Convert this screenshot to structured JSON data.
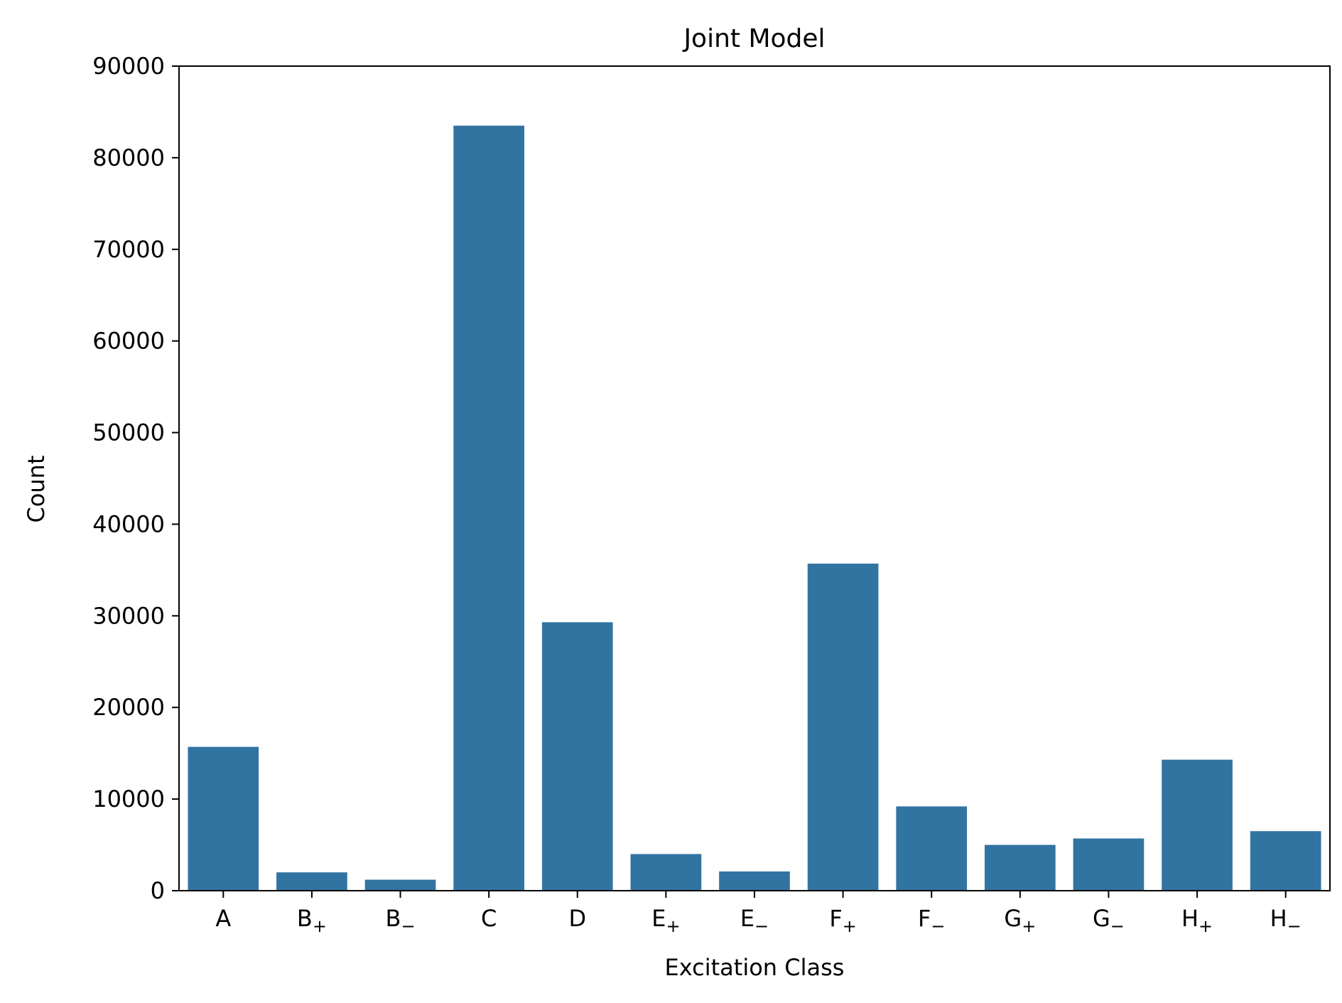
{
  "chart_data": {
    "type": "bar",
    "title": "Joint Model",
    "xlabel": "Excitation Class",
    "ylabel": "Count",
    "categories": [
      {
        "base": "A",
        "sub": ""
      },
      {
        "base": "B",
        "sub": "+"
      },
      {
        "base": "B",
        "sub": "−"
      },
      {
        "base": "C",
        "sub": ""
      },
      {
        "base": "D",
        "sub": ""
      },
      {
        "base": "E",
        "sub": "+"
      },
      {
        "base": "E",
        "sub": "−"
      },
      {
        "base": "F",
        "sub": "+"
      },
      {
        "base": "F",
        "sub": "−"
      },
      {
        "base": "G",
        "sub": "+"
      },
      {
        "base": "G",
        "sub": "−"
      },
      {
        "base": "H",
        "sub": "+"
      },
      {
        "base": "H",
        "sub": "−"
      }
    ],
    "values": [
      15700,
      2000,
      1200,
      83500,
      29300,
      4000,
      2100,
      35700,
      9200,
      5000,
      5700,
      14300,
      6500
    ],
    "ylim": [
      0,
      90000
    ],
    "yticks": [
      0,
      10000,
      20000,
      30000,
      40000,
      50000,
      60000,
      70000,
      80000,
      90000
    ],
    "bar_color": "#3274a1",
    "grid": false,
    "legend": "none"
  }
}
